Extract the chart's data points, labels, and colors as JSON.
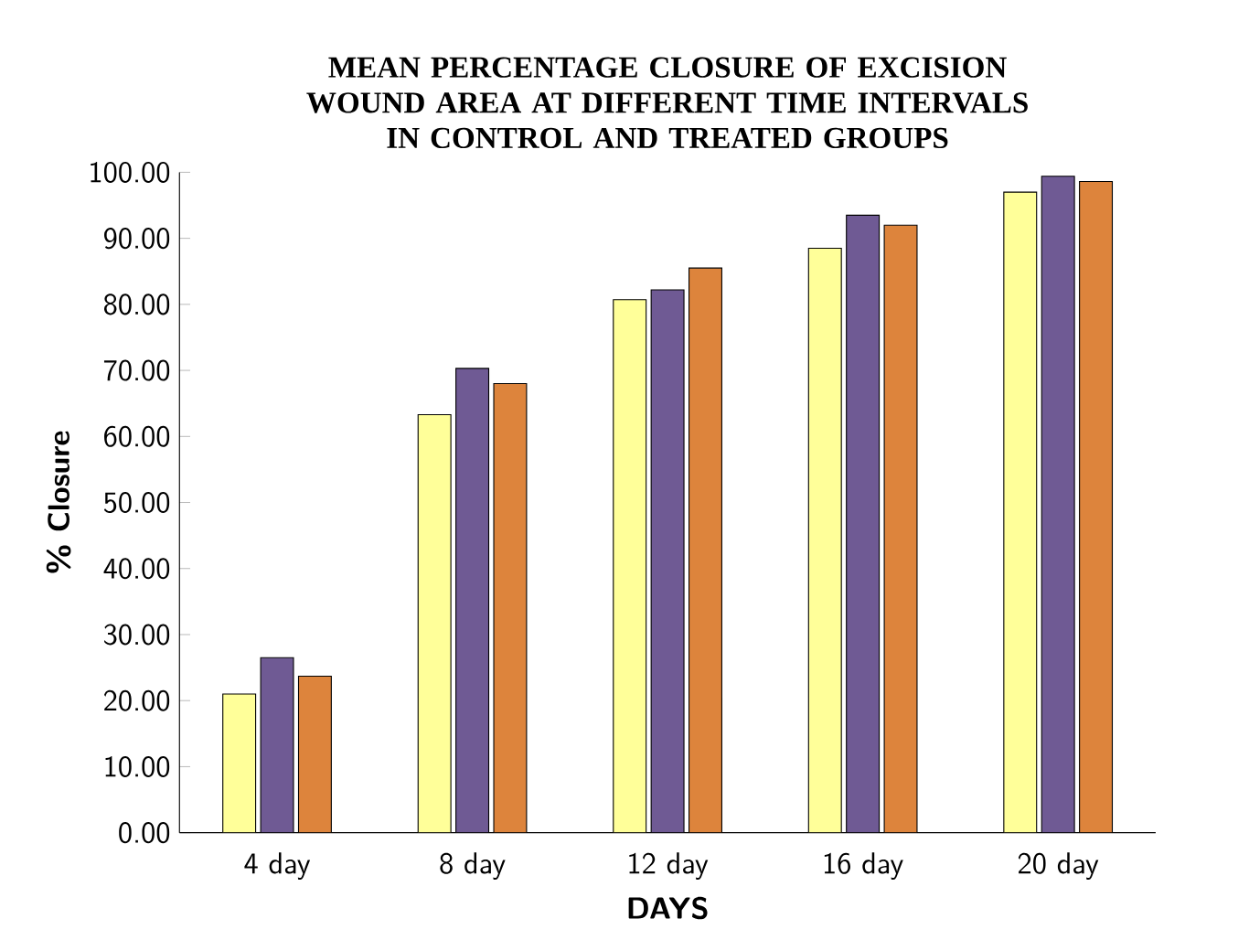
{
  "chart_data": {
    "type": "bar",
    "title": "MEAN PERCENTAGE CLOSURE OF EXCISION WOUND AREA AT DIFFERENT TIME INTERVALS IN CONTROL AND TREATED GROUPS",
    "xlabel": "DAYS",
    "ylabel": "% Closure",
    "categories": [
      "4 day",
      "8 day",
      "12 day",
      "16 day",
      "20 day"
    ],
    "series": [
      {
        "color": "#ffff99",
        "values": [
          21,
          63.3,
          80.7,
          88.5,
          97
        ]
      },
      {
        "color": "#6f5a94",
        "values": [
          26.5,
          70.3,
          82.2,
          93.5,
          99.4
        ]
      },
      {
        "color": "#dd843c",
        "values": [
          23.7,
          68,
          85.5,
          92,
          98.6
        ]
      }
    ],
    "ylim": [
      0,
      100
    ],
    "yticks": [
      {
        "value": 0,
        "label": "0.00"
      },
      {
        "value": 10,
        "label": "10.00"
      },
      {
        "value": 20,
        "label": "20.00"
      },
      {
        "value": 30,
        "label": "30.00"
      },
      {
        "value": 40,
        "label": "40.00"
      },
      {
        "value": 50,
        "label": "50.00"
      },
      {
        "value": 60,
        "label": "60.00"
      },
      {
        "value": 70,
        "label": "70.00"
      },
      {
        "value": 80,
        "label": "80.00"
      },
      {
        "value": 90,
        "label": "90.00"
      },
      {
        "value": 100,
        "label": "100.00"
      }
    ],
    "grid": false
  }
}
